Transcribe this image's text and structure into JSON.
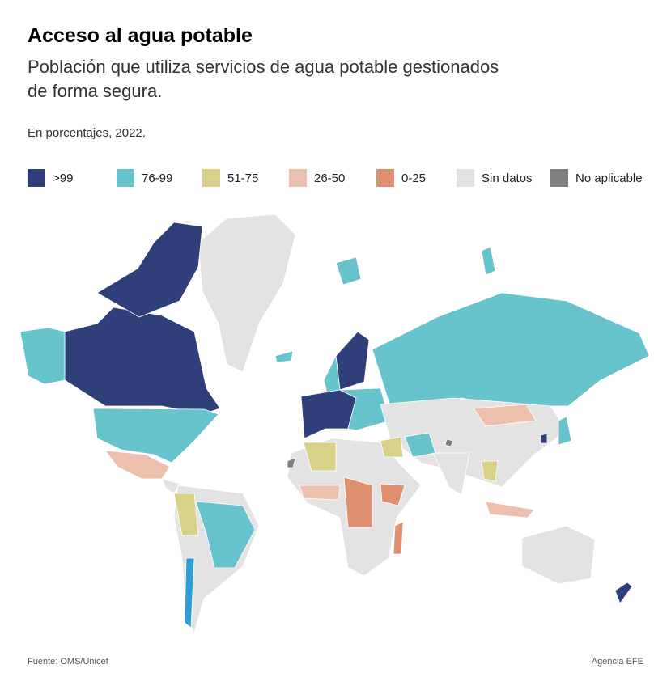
{
  "header": {
    "title": "Acceso al agua potable",
    "subtitle_lines": [
      "Población que utiliza servicios de agua potable gestionados",
      "de forma segura."
    ],
    "note": "En porcentajes, 2022."
  },
  "legend": [
    {
      "label": ">99",
      "color": "#2e3f7a"
    },
    {
      "label": "76-99",
      "color": "#67c3cc"
    },
    {
      "label": "51-75",
      "color": "#d9d08a"
    },
    {
      "label": "26-50",
      "color": "#ecc0ac"
    },
    {
      "label": "0-25",
      "color": "#df9070"
    },
    {
      "label": "Sin datos",
      "color": "#e3e3e3"
    },
    {
      "label": "No aplicable",
      "color": "#808080"
    }
  ],
  "footer": {
    "source": "Fuente: OMS/Unicef",
    "credit": "Agencia EFE"
  }
}
